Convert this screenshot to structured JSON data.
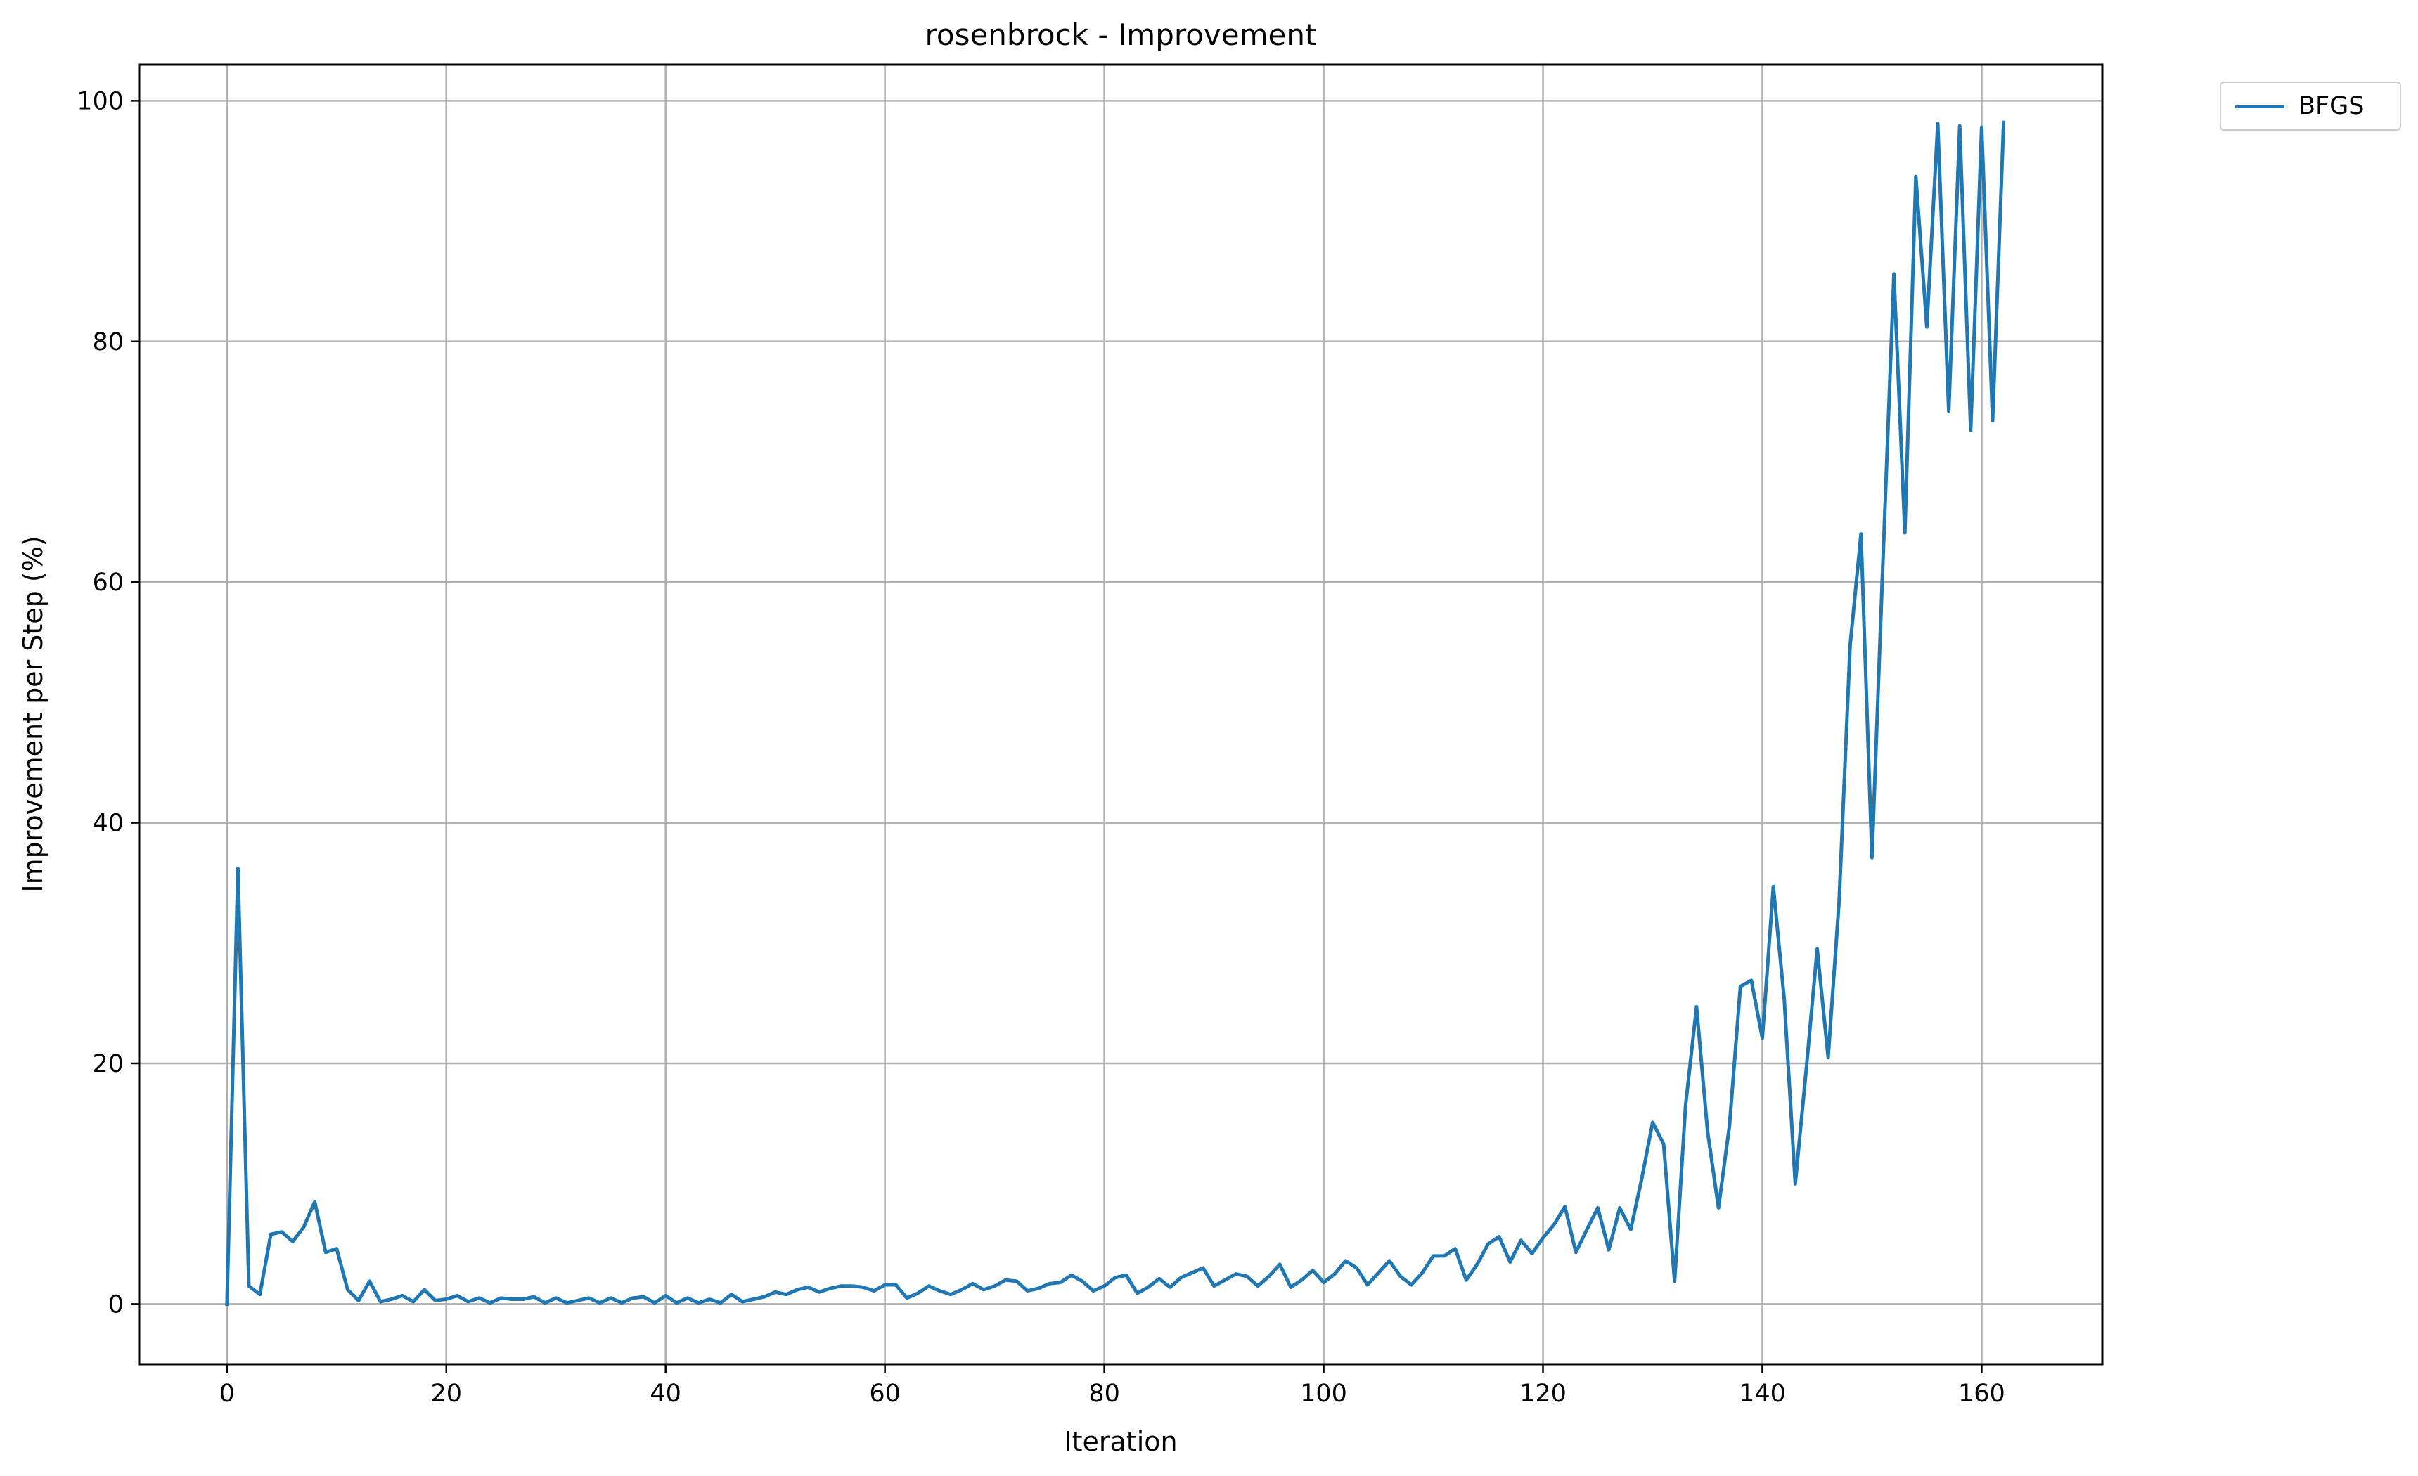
{
  "chart_data": {
    "type": "line",
    "title": "rosenbrock - Improvement",
    "xlabel": "Iteration",
    "ylabel": "Improvement per Step (%)",
    "xlim": [
      -8,
      171
    ],
    "ylim": [
      -5,
      103
    ],
    "xticks": [
      "0",
      "20",
      "40",
      "60",
      "80",
      "100",
      "120",
      "140",
      "160"
    ],
    "yticks": [
      "0",
      "20",
      "40",
      "60",
      "80",
      "100"
    ],
    "grid": true,
    "legend_position": "outside-top-right",
    "series": [
      {
        "name": "BFGS",
        "color": "#1f77b4",
        "x": [
          0,
          1,
          2,
          3,
          4,
          5,
          6,
          7,
          8,
          9,
          10,
          11,
          12,
          13,
          14,
          15,
          16,
          17,
          18,
          19,
          20,
          21,
          22,
          23,
          24,
          25,
          26,
          27,
          28,
          29,
          30,
          31,
          32,
          33,
          34,
          35,
          36,
          37,
          38,
          39,
          40,
          41,
          42,
          43,
          44,
          45,
          46,
          47,
          48,
          49,
          50,
          51,
          52,
          53,
          54,
          55,
          56,
          57,
          58,
          59,
          60,
          61,
          62,
          63,
          64,
          65,
          66,
          67,
          68,
          69,
          70,
          71,
          72,
          73,
          74,
          75,
          76,
          77,
          78,
          79,
          80,
          81,
          82,
          83,
          84,
          85,
          86,
          87,
          88,
          89,
          90,
          91,
          92,
          93,
          94,
          95,
          96,
          97,
          98,
          99,
          100,
          101,
          102,
          103,
          104,
          105,
          106,
          107,
          108,
          109,
          110,
          111,
          112,
          113,
          114,
          115,
          116,
          117,
          118,
          119,
          120,
          121,
          122,
          123,
          124,
          125,
          126,
          127,
          128,
          129,
          130,
          131,
          132,
          133,
          134,
          135,
          136,
          137,
          138,
          139,
          140,
          141,
          142,
          143,
          144,
          145,
          146,
          147,
          148,
          149,
          150,
          151,
          152,
          153,
          154,
          155,
          156,
          157,
          158,
          159,
          160,
          161,
          162
        ],
        "values": [
          0,
          36.2,
          1.5,
          0.8,
          5.8,
          6,
          5.2,
          6.4,
          8.5,
          4.3,
          4.6,
          1.2,
          0.3,
          1.9,
          0.2,
          0.4,
          0.7,
          0.2,
          1.2,
          0.3,
          0.4,
          0.7,
          0.2,
          0.5,
          0.1,
          0.5,
          0.4,
          0.4,
          0.6,
          0.1,
          0.5,
          0.1,
          0.3,
          0.5,
          0.1,
          0.5,
          0.1,
          0.5,
          0.6,
          0.1,
          0.7,
          0.1,
          0.5,
          0.1,
          0.4,
          0.1,
          0.8,
          0.2,
          0.4,
          0.6,
          1,
          0.8,
          1.2,
          1.4,
          1,
          1.3,
          1.5,
          1.5,
          1.4,
          1.1,
          1.6,
          1.6,
          0.5,
          0.9,
          1.5,
          1.1,
          0.8,
          1.2,
          1.7,
          1.2,
          1.5,
          2,
          1.9,
          1.1,
          1.3,
          1.7,
          1.8,
          2.4,
          1.9,
          1.1,
          1.5,
          2.2,
          2.4,
          0.9,
          1.4,
          2.1,
          1.4,
          2.2,
          2.6,
          3,
          1.5,
          2,
          2.5,
          2.3,
          1.5,
          2.3,
          3.3,
          1.4,
          2,
          2.8,
          1.8,
          2.5,
          3.6,
          3,
          1.6,
          2.6,
          3.6,
          2.3,
          1.6,
          2.6,
          4,
          4,
          4.6,
          2,
          3.3,
          5,
          5.6,
          3.5,
          5.3,
          4.2,
          5.5,
          6.6,
          8.1,
          4.3,
          6.2,
          8,
          4.5,
          8,
          6.2,
          10.4,
          15.1,
          13.3,
          1.9,
          16.5,
          24.7,
          14.4,
          8,
          14.8,
          26.4,
          26.9,
          22.1,
          34.7,
          25.3,
          10,
          19.5,
          29.5,
          20.5,
          33.5,
          54.7,
          64,
          37.1,
          61.7,
          85.6,
          64.1,
          93.7,
          81.2,
          98.1,
          74.2,
          97.9,
          72.6,
          97.8,
          73.4,
          98.2
        ]
      }
    ]
  }
}
